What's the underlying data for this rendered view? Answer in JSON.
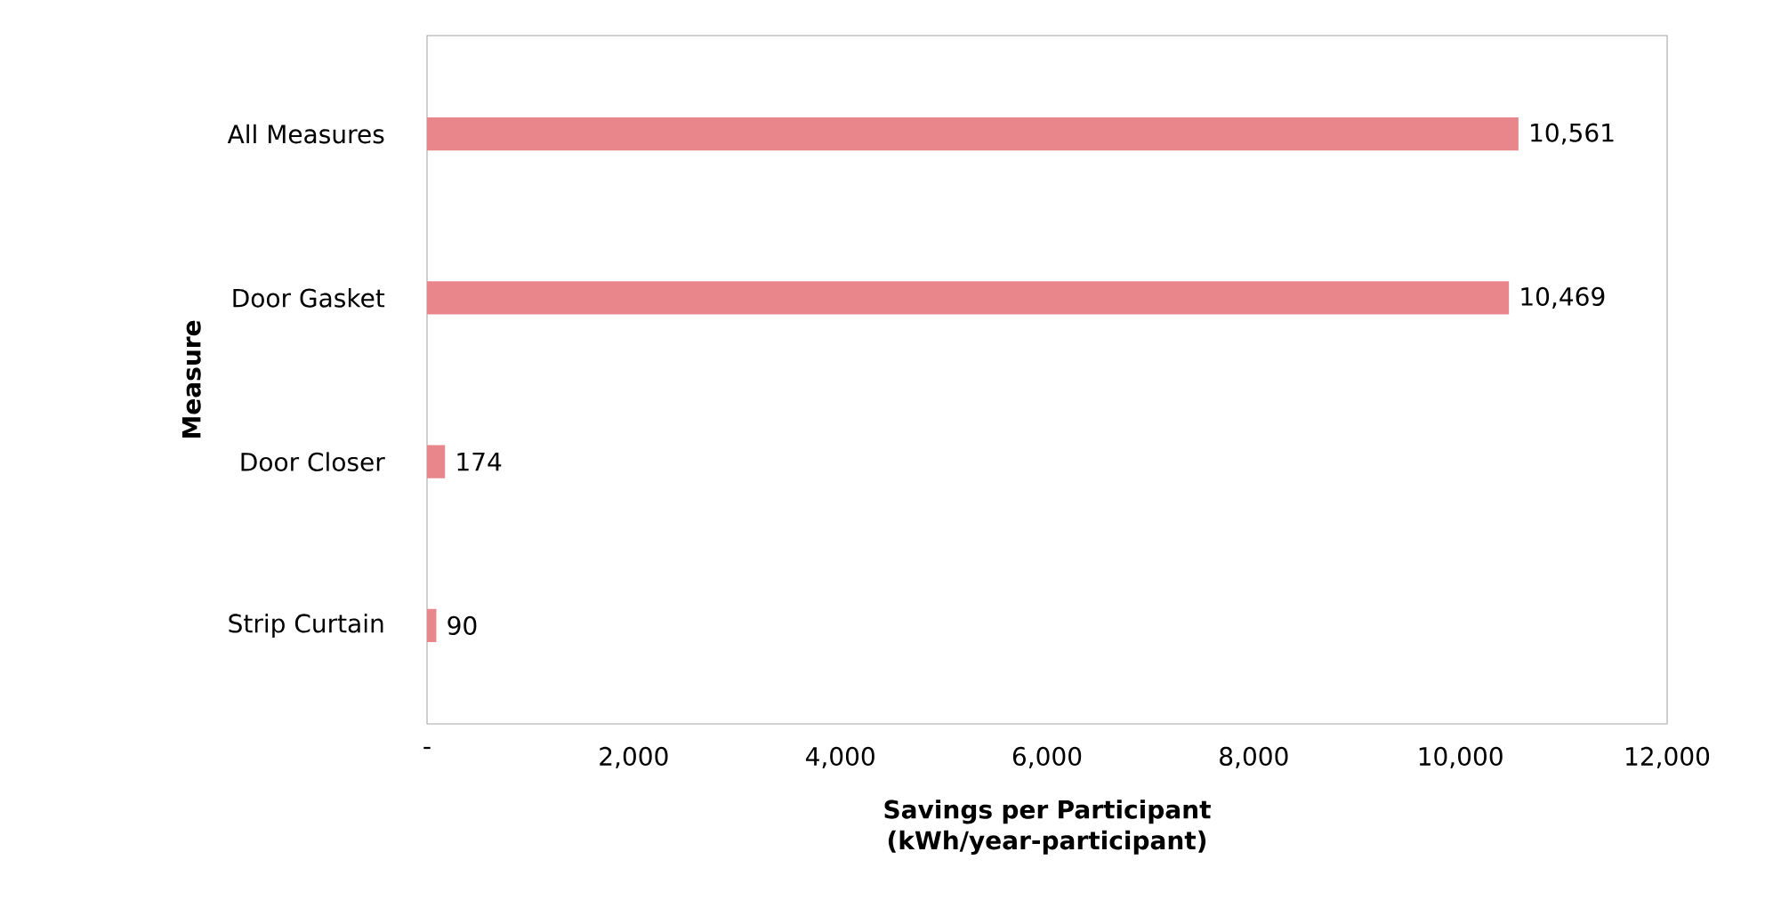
{
  "chart_data": {
    "type": "bar",
    "orientation": "horizontal",
    "xlabel": "Savings per Participant (kWh/year-participant)",
    "ylabel": "Measure",
    "categories": [
      "All Measures",
      "Door Gasket",
      "Door Closer",
      "Strip Curtain"
    ],
    "values": [
      10561,
      10469,
      174,
      90
    ],
    "value_labels": [
      "10,561",
      "10,469",
      "174",
      "90"
    ],
    "color": "#e8868c",
    "xlim": [
      0,
      12000
    ],
    "xticks": [
      {
        "value": 0,
        "label": "-"
      },
      {
        "value": 2000,
        "label": "2,000"
      },
      {
        "value": 4000,
        "label": "4,000"
      },
      {
        "value": 6000,
        "label": "6,000"
      },
      {
        "value": 8000,
        "label": "8,000"
      },
      {
        "value": 10000,
        "label": "10,000"
      },
      {
        "value": 12000,
        "label": "12,000"
      }
    ]
  }
}
